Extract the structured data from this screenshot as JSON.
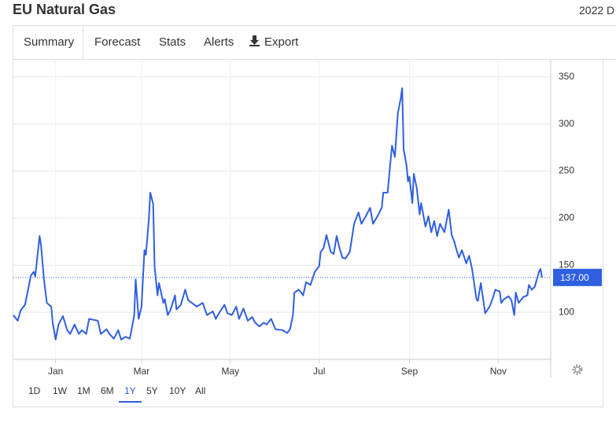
{
  "header": {
    "title": "EU Natural Gas",
    "date": "2022 D"
  },
  "tabs": [
    "Summary",
    "Forecast",
    "Stats",
    "Alerts",
    "Export"
  ],
  "ranges": [
    "1D",
    "1W",
    "1M",
    "6M",
    "1Y",
    "5Y",
    "10Y",
    "All"
  ],
  "chart_data": {
    "type": "line",
    "x": [
      -29,
      -26,
      -24,
      -21,
      -18,
      -17,
      -15,
      -14,
      -11,
      -10,
      -8,
      -6,
      -3,
      -2,
      0,
      2,
      5,
      8,
      10,
      13,
      16,
      18,
      21,
      23,
      26,
      29,
      31,
      35,
      37,
      40,
      43,
      45,
      48,
      51,
      54,
      55,
      57,
      59,
      61,
      62,
      64,
      65,
      67,
      68,
      70,
      71,
      74,
      75,
      77,
      79,
      82,
      83,
      86,
      89,
      91,
      97,
      101,
      104,
      108,
      110,
      113,
      116,
      118,
      121,
      124,
      126,
      129,
      132,
      135,
      137,
      140,
      143,
      145,
      148,
      151,
      156,
      159,
      161,
      163,
      164,
      167,
      170,
      172,
      175,
      178,
      181,
      182,
      184,
      186,
      189,
      191,
      193,
      195,
      197,
      199,
      202,
      205,
      208,
      210,
      213,
      216,
      218,
      221,
      224,
      225,
      228,
      229,
      231,
      233,
      235,
      237,
      238,
      239,
      241,
      242,
      243,
      245,
      246,
      248,
      250,
      251,
      254,
      256,
      258,
      260,
      262,
      264,
      267,
      270,
      272,
      274,
      275,
      277,
      279,
      282,
      284,
      286,
      289,
      290,
      292,
      295,
      298,
      300,
      302,
      305,
      306,
      308,
      311,
      313,
      315,
      316,
      318,
      321,
      324,
      325,
      327,
      329,
      332,
      333,
      334
    ],
    "series": [
      {
        "color": "#2f5fe0",
        "values": [
          97,
          91,
          102,
          108,
          131,
          139,
          143,
          138,
          181,
          171,
          135,
          110,
          106,
          89,
          71,
          87,
          96,
          81,
          77,
          87,
          77,
          81,
          77,
          93,
          92,
          91,
          77,
          82,
          77,
          72,
          81,
          71,
          74,
          72,
          97,
          135,
          93,
          106,
          166,
          161,
          198,
          227,
          215,
          148,
          118,
          131,
          110,
          114,
          97,
          103,
          118,
          103,
          108,
          124,
          113,
          106,
          110,
          97,
          101,
          93,
          101,
          108,
          99,
          97,
          106,
          93,
          104,
          91,
          95,
          89,
          85,
          89,
          87,
          93,
          82,
          81,
          78,
          82,
          97,
          121,
          124,
          118,
          132,
          129,
          143,
          149,
          164,
          168,
          182,
          164,
          162,
          181,
          168,
          158,
          157,
          164,
          194,
          206,
          194,
          202,
          211,
          194,
          202,
          211,
          227,
          227,
          244,
          277,
          265,
          311,
          327,
          338,
          273,
          256,
          239,
          244,
          216,
          247,
          232,
          204,
          216,
          191,
          202,
          185,
          197,
          181,
          194,
          185,
          209,
          182,
          174,
          168,
          158,
          166,
          152,
          160,
          146,
          114,
          112,
          131,
          99,
          106,
          114,
          124,
          122,
          110,
          114,
          117,
          113,
          97,
          121,
          110,
          116,
          118,
          129,
          124,
          127,
          143,
          146,
          137
        ]
      }
    ],
    "xlim": [
      -29,
      340
    ],
    "xticks": [
      {
        "value": 0,
        "label": "Jan"
      },
      {
        "value": 59,
        "label": "Mar"
      },
      {
        "value": 120,
        "label": "May"
      },
      {
        "value": 181,
        "label": "Jul"
      },
      {
        "value": 243,
        "label": "Sep"
      },
      {
        "value": 304,
        "label": "Nov"
      }
    ],
    "ylim": [
      50,
      369
    ],
    "yticks": [
      100,
      150,
      200,
      250,
      300,
      350
    ],
    "grid": true,
    "last_value": {
      "value": 137,
      "label": "137.00"
    }
  }
}
